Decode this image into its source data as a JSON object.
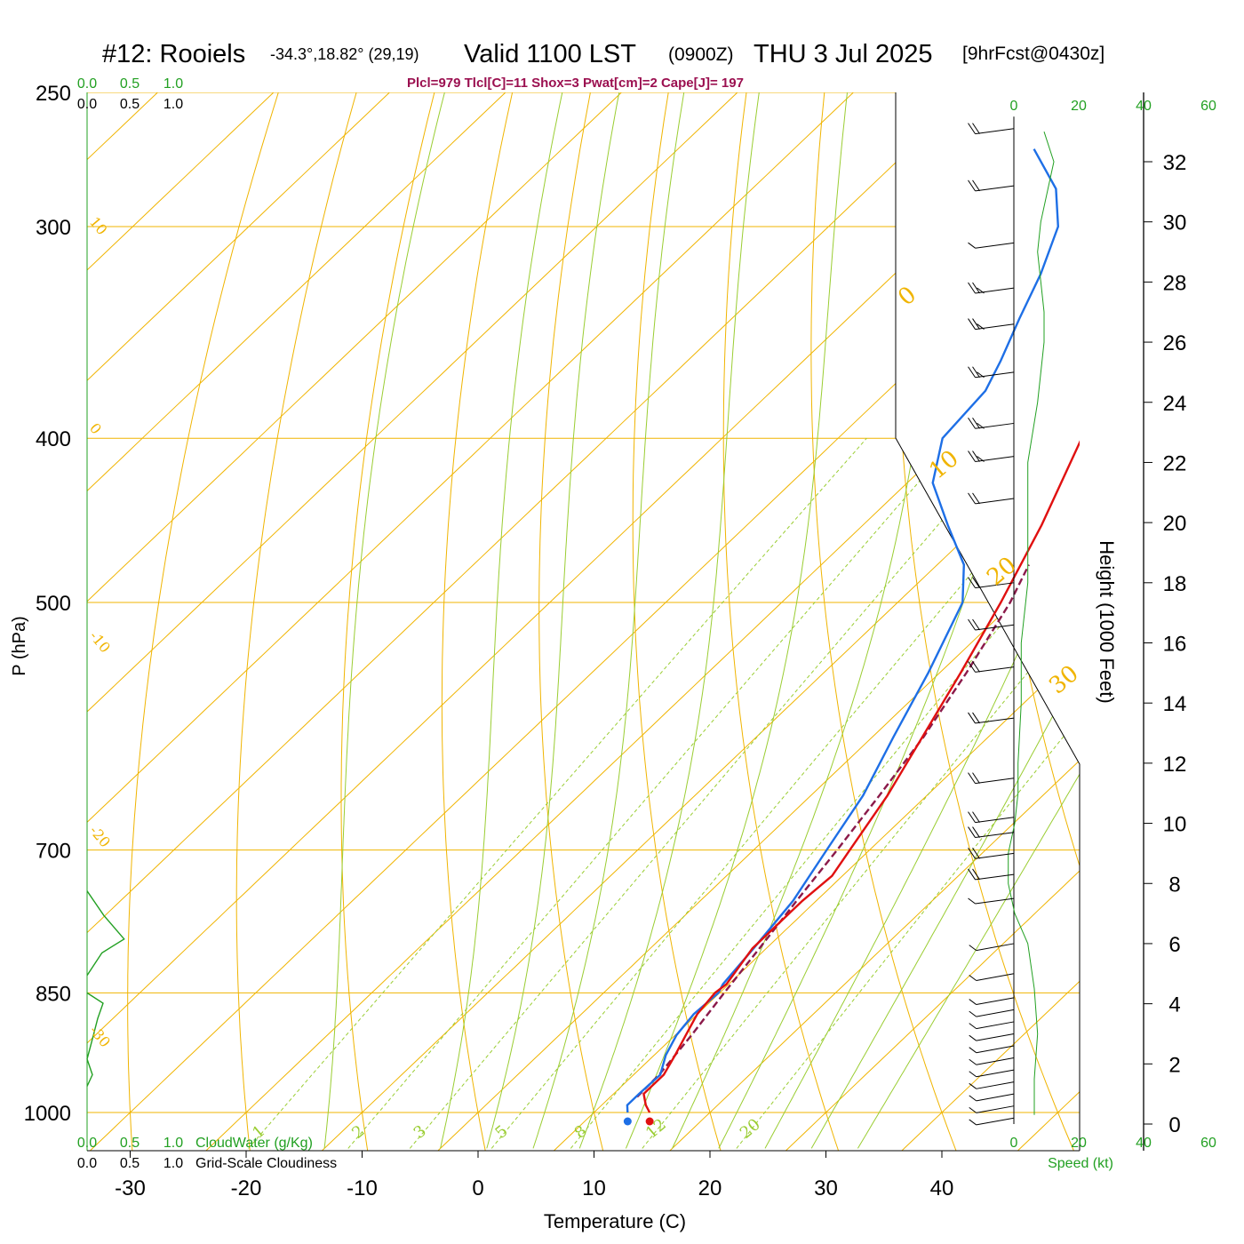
{
  "title": {
    "station": "#12: Rooiels",
    "coords": "-34.3°,18.82° (29,19)",
    "valid": "Valid 1100 LST",
    "zulu": "(0900Z)",
    "date": "THU 3 Jul 2025",
    "forecast": "[9hrFcst@0430z]"
  },
  "indices": "Plcl=979 Tlcl[C]=11 Shox=3 Pwat[cm]=2 Cape[J]= 197",
  "colors": {
    "isotherm": "#f0b400",
    "dry_adiabat": "#f0b400",
    "moist_adiabat": "#9acd32",
    "mixing_ratio": "#9acd32",
    "temperature": "#e01010",
    "dewpoint": "#1e6fe6",
    "parcel": "#8b1a4a",
    "cloud": "#22a022",
    "indices_text": "#9b1050",
    "speed_profile": "#22a022",
    "height_axis": "#000000"
  },
  "axes": {
    "x_label": "Temperature (C)",
    "y_label": "P (hPa)",
    "height_label": "Height (1000 Feet)",
    "speed_label": "Speed (kt)",
    "cloudwater_label": "CloudWater (g/Kg)",
    "cloudiness_label": "Grid-Scale Cloudiness"
  },
  "chart_data": {
    "type": "line",
    "chart_kind": "skew-T log-P sounding",
    "x_label": "Temperature (C)",
    "y_label": "P (hPa)",
    "x_ticks": [
      "-30",
      "-20",
      "-10",
      "0",
      "10",
      "20",
      "30",
      "40"
    ],
    "x_tick_values": [
      -30,
      -20,
      -10,
      0,
      10,
      20,
      30,
      40
    ],
    "p_ticks": [
      "250",
      "300",
      "400",
      "500",
      "700",
      "850",
      "1000"
    ],
    "p_tick_values": [
      250,
      300,
      400,
      500,
      700,
      850,
      1000
    ],
    "isotherm_labels": [
      "10",
      "0",
      "-10",
      "-20",
      "-30",
      "0",
      "10",
      "20",
      "30"
    ],
    "mixing_ratio_labels": [
      "1",
      "2",
      "3",
      "5",
      "8",
      "12",
      "20"
    ],
    "temperature_profile": [
      {
        "p": 1000,
        "t": 14.8
      },
      {
        "p": 990,
        "t": 13.8
      },
      {
        "p": 975,
        "t": 12.6
      },
      {
        "p": 950,
        "t": 12.6
      },
      {
        "p": 925,
        "t": 11.8
      },
      {
        "p": 900,
        "t": 10.9
      },
      {
        "p": 875,
        "t": 10.0
      },
      {
        "p": 850,
        "t": 9.6
      },
      {
        "p": 840,
        "t": 9.8
      },
      {
        "p": 800,
        "t": 8.8
      },
      {
        "p": 750,
        "t": 8.8
      },
      {
        "p": 725,
        "t": 9.1
      },
      {
        "p": 700,
        "t": 8.3
      },
      {
        "p": 650,
        "t": 6.6
      },
      {
        "p": 600,
        "t": 4.3
      },
      {
        "p": 550,
        "t": 1.8
      },
      {
        "p": 500,
        "t": -1.1
      },
      {
        "p": 450,
        "t": -4.6
      },
      {
        "p": 400,
        "t": -9.0
      },
      {
        "p": 350,
        "t": -15.0
      },
      {
        "p": 340,
        "t": -16.2
      },
      {
        "p": 320,
        "t": -18.3
      },
      {
        "p": 310,
        "t": -18.5
      },
      {
        "p": 300,
        "t": -19.8
      },
      {
        "p": 285,
        "t": -21.8
      },
      {
        "p": 270,
        "t": -23.9
      }
    ],
    "dewpoint_profile": [
      {
        "p": 1000,
        "t": 12.9
      },
      {
        "p": 990,
        "t": 12.2
      },
      {
        "p": 975,
        "t": 12.2
      },
      {
        "p": 950,
        "t": 12.3
      },
      {
        "p": 925,
        "t": 11.0
      },
      {
        "p": 900,
        "t": 10.1
      },
      {
        "p": 875,
        "t": 9.7
      },
      {
        "p": 850,
        "t": 9.9
      },
      {
        "p": 840,
        "t": 9.5
      },
      {
        "p": 800,
        "t": 8.9
      },
      {
        "p": 750,
        "t": 8.0
      },
      {
        "p": 700,
        "t": 6.3
      },
      {
        "p": 650,
        "t": 4.5
      },
      {
        "p": 600,
        "t": 1.8
      },
      {
        "p": 550,
        "t": -1.0
      },
      {
        "p": 500,
        "t": -4.4
      },
      {
        "p": 475,
        "t": -7.7
      },
      {
        "p": 450,
        "t": -12.7
      },
      {
        "p": 425,
        "t": -17.8
      },
      {
        "p": 400,
        "t": -21.0
      },
      {
        "p": 375,
        "t": -21.6
      },
      {
        "p": 360,
        "t": -23.0
      },
      {
        "p": 340,
        "t": -25.2
      },
      {
        "p": 320,
        "t": -27.4
      },
      {
        "p": 300,
        "t": -30.2
      },
      {
        "p": 285,
        "t": -33.8
      },
      {
        "p": 270,
        "t": -39.3
      }
    ],
    "parcel_profile": [
      {
        "p": 979,
        "t": 12.3
      },
      {
        "p": 950,
        "t": 12.2
      },
      {
        "p": 900,
        "t": 11.4
      },
      {
        "p": 850,
        "t": 10.4
      },
      {
        "p": 800,
        "t": 9.4
      },
      {
        "p": 750,
        "t": 8.3
      },
      {
        "p": 700,
        "t": 7.2
      },
      {
        "p": 650,
        "t": 5.9
      },
      {
        "p": 600,
        "t": 4.4
      },
      {
        "p": 550,
        "t": 2.3
      },
      {
        "p": 500,
        "t": -0.3
      },
      {
        "p": 475,
        "t": -2.1
      }
    ],
    "surface_temperature": 14.8,
    "surface_dewpoint": 12.9,
    "cloudwater_ticks": [
      "0.0",
      "0.5",
      "1.0"
    ],
    "cloudiness_ticks": [
      "0.0",
      "0.5",
      "1.0"
    ],
    "cloudiness_profile": [
      {
        "p": 740,
        "v": 0.0
      },
      {
        "p": 765,
        "v": 0.45
      },
      {
        "p": 790,
        "v": 1.0
      },
      {
        "p": 805,
        "v": 0.4
      },
      {
        "p": 830,
        "v": 0.0
      }
    ],
    "cloudwater_profile": [
      {
        "p": 850,
        "v": 0.0
      },
      {
        "p": 862,
        "v": 0.45
      },
      {
        "p": 880,
        "v": 0.3
      },
      {
        "p": 905,
        "v": 0.15
      },
      {
        "p": 930,
        "v": 0.0
      },
      {
        "p": 950,
        "v": 0.15
      },
      {
        "p": 965,
        "v": 0.0
      }
    ],
    "height_ticks": [
      "0",
      "2",
      "4",
      "6",
      "8",
      "10",
      "12",
      "14",
      "16",
      "18",
      "20",
      "22",
      "24",
      "26",
      "28",
      "30",
      "32"
    ],
    "height_tick_values_kft": [
      0,
      2,
      4,
      6,
      8,
      10,
      12,
      14,
      16,
      18,
      20,
      22,
      24,
      26,
      28,
      30,
      32
    ],
    "speed_ticks": [
      "0",
      "20",
      "40",
      "60"
    ],
    "wind_speed_profile_kt": [
      {
        "h": 0.3,
        "s": 3
      },
      {
        "h": 1.5,
        "s": 3
      },
      {
        "h": 3,
        "s": 4
      },
      {
        "h": 4.5,
        "s": 3
      },
      {
        "h": 6,
        "s": 1
      },
      {
        "h": 7,
        "s": -3
      },
      {
        "h": 8,
        "s": -5
      },
      {
        "h": 9,
        "s": -5
      },
      {
        "h": 10,
        "s": -3
      },
      {
        "h": 11,
        "s": -2
      },
      {
        "h": 12,
        "s": -2
      },
      {
        "h": 14,
        "s": -1
      },
      {
        "h": 16,
        "s": -1
      },
      {
        "h": 18,
        "s": 1
      },
      {
        "h": 20,
        "s": 1
      },
      {
        "h": 21.5,
        "s": 1
      },
      {
        "h": 22,
        "s": 1
      },
      {
        "h": 24,
        "s": 4
      },
      {
        "h": 26,
        "s": 6
      },
      {
        "h": 27,
        "s": 6
      },
      {
        "h": 29,
        "s": 4
      },
      {
        "h": 30,
        "s": 5
      },
      {
        "h": 32,
        "s": 9
      },
      {
        "h": 33,
        "s": 6
      }
    ],
    "wind_barbs": [
      {
        "h": 0.2,
        "s": 5
      },
      {
        "h": 0.6,
        "s": 5
      },
      {
        "h": 1.0,
        "s": 5
      },
      {
        "h": 1.4,
        "s": 5
      },
      {
        "h": 1.8,
        "s": 5
      },
      {
        "h": 2.2,
        "s": 5
      },
      {
        "h": 2.6,
        "s": 5
      },
      {
        "h": 3.0,
        "s": 5
      },
      {
        "h": 3.4,
        "s": 5
      },
      {
        "h": 3.8,
        "s": 5
      },
      {
        "h": 4.2,
        "s": 5
      },
      {
        "h": 5.0,
        "s": 5
      },
      {
        "h": 6.0,
        "s": 5
      },
      {
        "h": 7.5,
        "s": 5
      },
      {
        "h": 8.3,
        "s": 10
      },
      {
        "h": 9.0,
        "s": 10
      },
      {
        "h": 9.7,
        "s": 10
      },
      {
        "h": 10.2,
        "s": 10
      },
      {
        "h": 11.5,
        "s": 10
      },
      {
        "h": 13.5,
        "s": 10
      },
      {
        "h": 15.2,
        "s": 10
      },
      {
        "h": 16.6,
        "s": 10
      },
      {
        "h": 18.0,
        "s": 10
      },
      {
        "h": 20.8,
        "s": 10
      },
      {
        "h": 22.2,
        "s": 15
      },
      {
        "h": 23.3,
        "s": 15
      },
      {
        "h": 25.0,
        "s": 15
      },
      {
        "h": 26.6,
        "s": 15
      },
      {
        "h": 27.8,
        "s": 15
      },
      {
        "h": 29.3,
        "s": 5
      },
      {
        "h": 31.2,
        "s": 10
      },
      {
        "h": 33.1,
        "s": 10
      }
    ]
  }
}
